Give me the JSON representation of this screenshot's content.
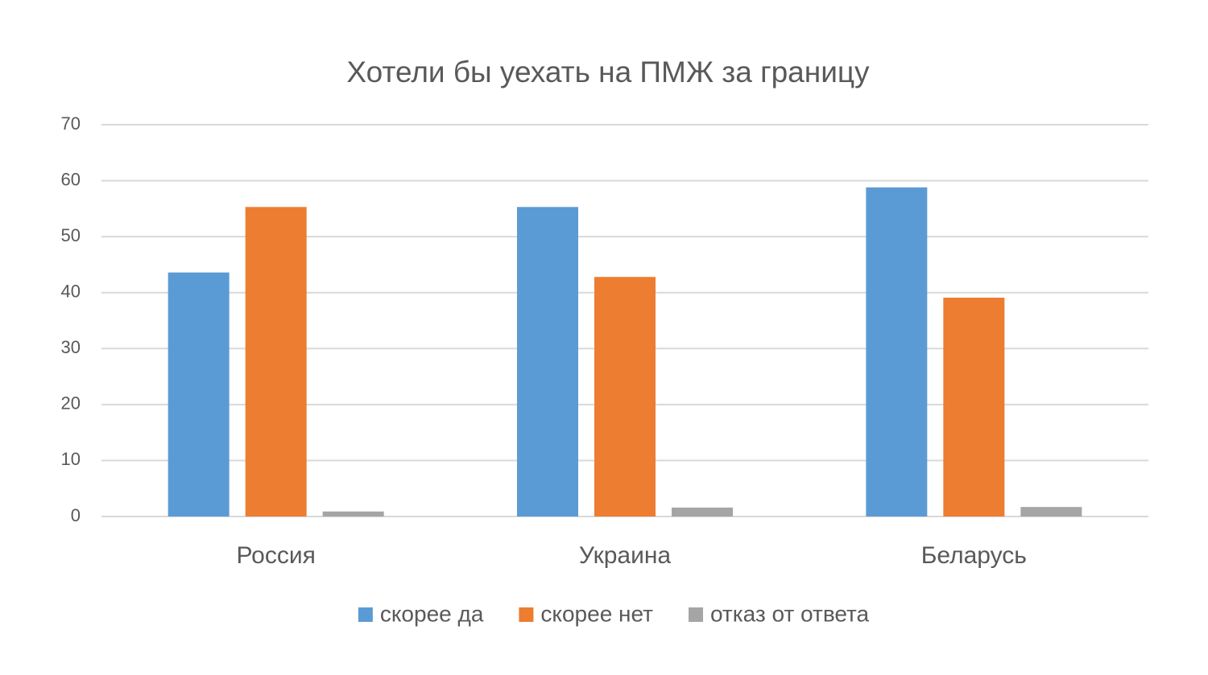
{
  "chart_data": {
    "type": "bar",
    "title": "Хотели бы уехать на ПМЖ за границу",
    "categories": [
      "Россия",
      "Украина",
      "Беларусь"
    ],
    "series": [
      {
        "name": "скорее да",
        "color": "#5b9bd5",
        "values": [
          43.6,
          55.3,
          58.8
        ]
      },
      {
        "name": "скорее нет",
        "color": "#ed7d31",
        "values": [
          55.3,
          42.8,
          39.1
        ]
      },
      {
        "name": "отказ от ответа",
        "color": "#a5a5a5",
        "values": [
          0.9,
          1.6,
          1.7
        ]
      }
    ],
    "ylim": [
      0,
      70
    ],
    "yticks": [
      0,
      10,
      20,
      30,
      40,
      50,
      60,
      70
    ],
    "grid": true,
    "legend": "bottom"
  }
}
